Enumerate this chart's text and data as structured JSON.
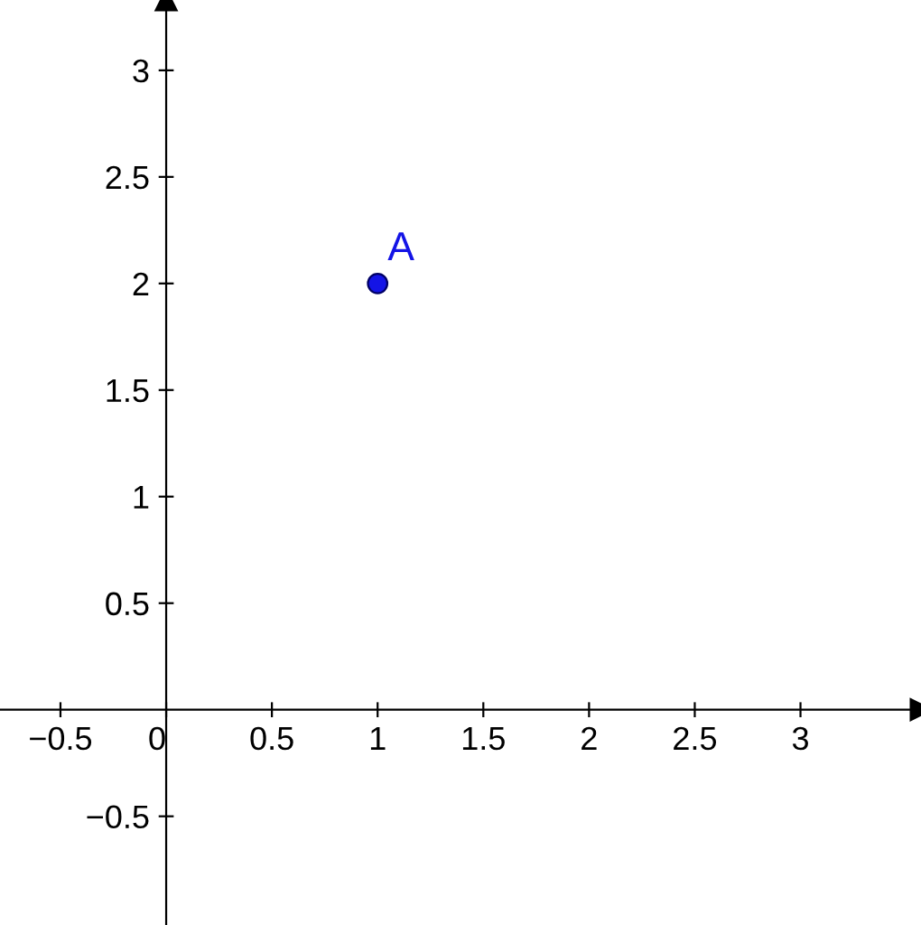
{
  "chart_data": {
    "type": "scatter",
    "xlim": [
      -0.786,
      3.57
    ],
    "ylim": [
      -1.01,
      3.33
    ],
    "xticks": [
      {
        "value": -0.5,
        "label": "−0.5"
      },
      0,
      0.5,
      1,
      1.5,
      2,
      2.5,
      3
    ],
    "yticks": [
      {
        "value": -0.5,
        "label": "−0.5"
      },
      0.5,
      1,
      1.5,
      2,
      2.5,
      3
    ],
    "series": [
      {
        "name": "A",
        "color": "#1414e6",
        "x": [
          1
        ],
        "values": [
          2
        ]
      }
    ],
    "marker": "circle",
    "grid": false,
    "legend": false
  }
}
